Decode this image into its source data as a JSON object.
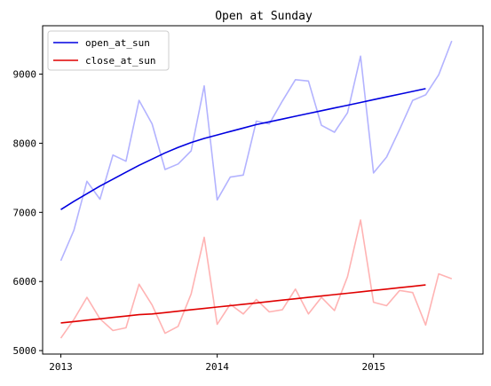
{
  "chart_data": {
    "type": "line",
    "title": "Open at Sunday",
    "xlabel": "",
    "ylabel": "",
    "x_tick_labels": [
      "2013",
      "2014",
      "2015"
    ],
    "x_tick_values": [
      0,
      12,
      24
    ],
    "y_ticks": [
      5000,
      6000,
      7000,
      8000,
      9000
    ],
    "xlim": [
      -1.4,
      32.4
    ],
    "ylim": [
      4950,
      9700
    ],
    "grid": false,
    "legend_position": "upper left",
    "x": [
      0,
      1,
      2,
      3,
      4,
      5,
      6,
      7,
      8,
      9,
      10,
      11,
      12,
      13,
      14,
      15,
      16,
      17,
      18,
      19,
      20,
      21,
      22,
      23,
      24,
      25,
      26,
      27,
      28,
      29,
      30,
      31
    ],
    "series": [
      {
        "name": "",
        "color": "#b3b3ff",
        "values": [
          6300,
          6740,
          7450,
          7190,
          7830,
          7740,
          8620,
          8280,
          7620,
          7700,
          7890,
          8830,
          7180,
          7510,
          7540,
          8320,
          8280,
          8610,
          8920,
          8900,
          8260,
          8160,
          8440,
          9260,
          7570,
          7800,
          8200,
          8620,
          8700,
          8990,
          9480,
          null
        ]
      },
      {
        "name": "open_at_sun",
        "color": "#0000e0",
        "values": [
          7040,
          7160,
          7270,
          7380,
          7480,
          7580,
          7680,
          7770,
          7860,
          7940,
          8010,
          8070,
          8120,
          8170,
          8220,
          8270,
          8310,
          8350,
          8390,
          8430,
          8470,
          8510,
          8550,
          8590,
          8630,
          8670,
          8710,
          8750,
          8790,
          null,
          null,
          null
        ]
      },
      {
        "name": "",
        "color": "#ffb3b3",
        "values": [
          5180,
          5450,
          5770,
          5460,
          5290,
          5330,
          5960,
          5660,
          5250,
          5350,
          5820,
          6640,
          5380,
          5670,
          5530,
          5740,
          5560,
          5590,
          5890,
          5530,
          5770,
          5580,
          6070,
          6890,
          5700,
          5650,
          5870,
          5840,
          5370,
          6110,
          6040,
          null
        ]
      },
      {
        "name": "close_at_sun",
        "color": "#e00000",
        "values": [
          5400,
          5420,
          5440,
          5460,
          5480,
          5500,
          5520,
          5530,
          5550,
          5570,
          5590,
          5610,
          5630,
          5650,
          5670,
          5690,
          5710,
          5730,
          5750,
          5770,
          5790,
          5810,
          5830,
          5850,
          5870,
          5890,
          5910,
          5930,
          5950,
          null,
          null,
          null
        ]
      }
    ],
    "legend_entries": [
      "open_at_sun",
      "close_at_sun"
    ]
  }
}
